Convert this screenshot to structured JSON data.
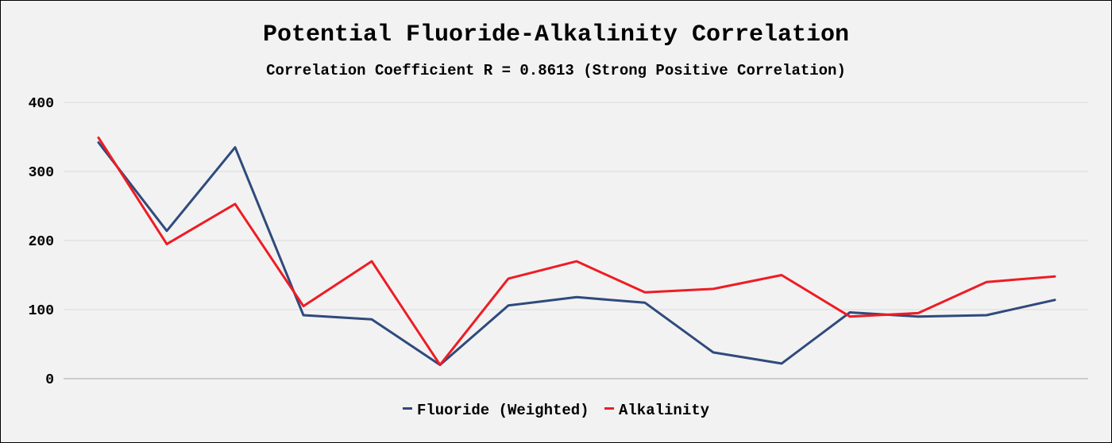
{
  "chart_data": {
    "type": "line",
    "title": "Potential Fluoride-Alkalinity Correlation",
    "subtitle": "Correlation Coefficient R = 0.8613 (Strong Positive Correlation)",
    "xlabel": "",
    "ylabel": "",
    "ylim": [
      0,
      400
    ],
    "yticks": [
      "0",
      "100",
      "200",
      "300",
      "400"
    ],
    "grid": true,
    "legend": "bottom",
    "x": [
      1,
      2,
      3,
      4,
      5,
      6,
      7,
      8,
      9,
      10,
      11,
      12,
      13,
      14,
      15
    ],
    "series": [
      {
        "name": "Fluoride (Weighted)",
        "color": "#2f4a7c",
        "values": [
          342,
          214,
          335,
          92,
          86,
          20,
          106,
          118,
          110,
          38,
          22,
          96,
          90,
          92,
          114
        ]
      },
      {
        "name": "Alkalinity",
        "color": "#ee1c24",
        "values": [
          349,
          195,
          253,
          105,
          170,
          20,
          145,
          170,
          125,
          130,
          150,
          90,
          95,
          140,
          148
        ]
      }
    ]
  }
}
